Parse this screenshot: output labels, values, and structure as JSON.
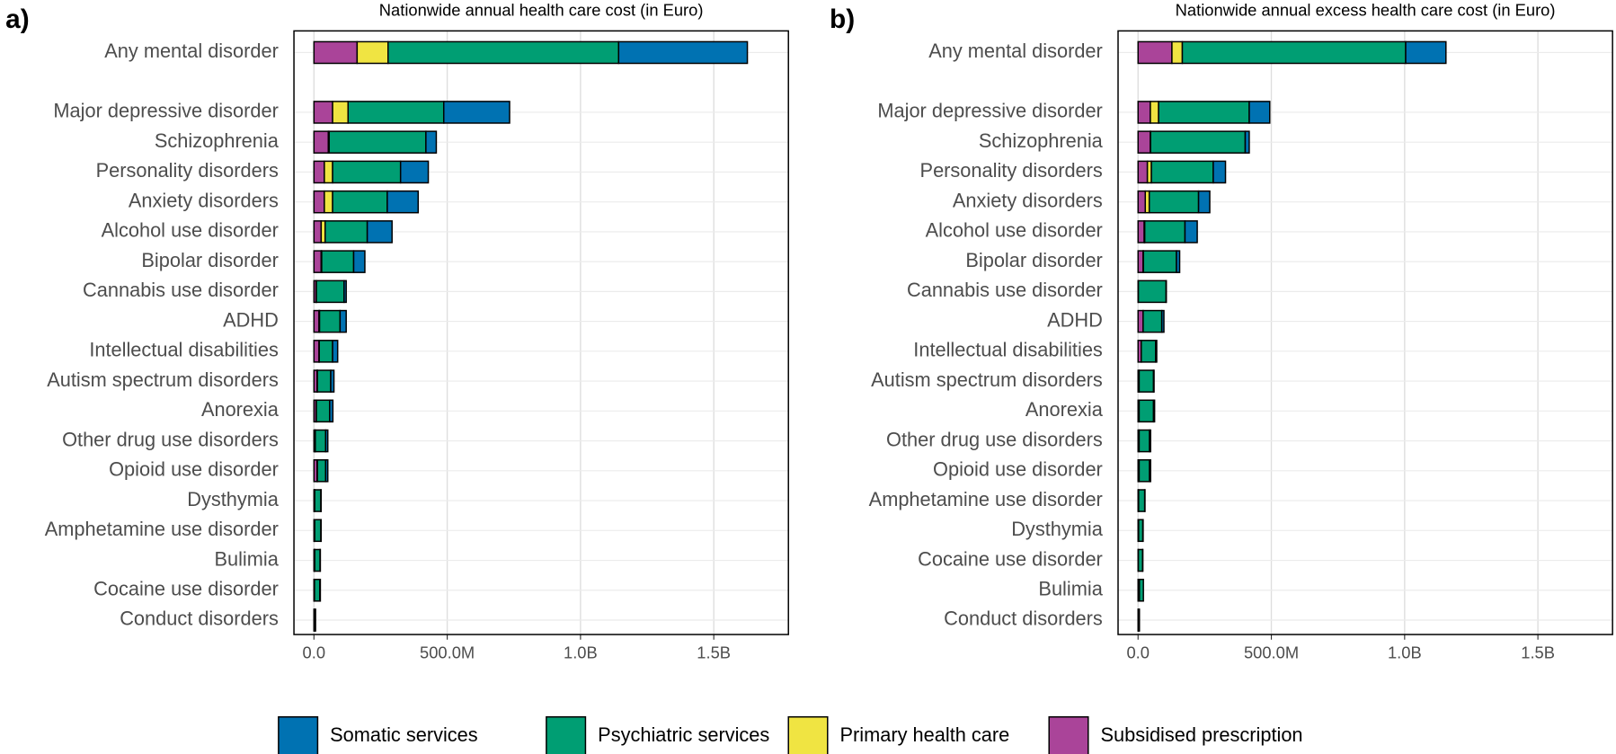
{
  "chart_data": [
    {
      "type": "bar",
      "orientation": "horizontal",
      "panel_label": "a)",
      "title": "Nationwide annual health care cost (in Euro)",
      "categories": [
        "Any mental disorder",
        "Major depressive disorder",
        "Schizophrenia",
        "Personality disorders",
        "Anxiety disorders",
        "Alcohol use disorder",
        "Bipolar disorder",
        "Cannabis use disorder",
        "ADHD",
        "Intellectual disabilities",
        "Autism spectrum disorders",
        "Anorexia",
        "Other drug use disorders",
        "Opioid use disorder",
        "Dysthymia",
        "Amphetamine use disorder",
        "Bulimia",
        "Cocaine use disorder",
        "Conduct disorders"
      ],
      "series": [
        {
          "name": "Subsidised prescription",
          "color": "#AA4499",
          "values": [
            162000000,
            70000000,
            54000000,
            39000000,
            39000000,
            27000000,
            27000000,
            8000000,
            19000000,
            19000000,
            12000000,
            8000000,
            4000000,
            12000000,
            2000000,
            2000000,
            2000000,
            1000000,
            1000000
          ]
        },
        {
          "name": "Primary health care",
          "color": "#F0E442",
          "values": [
            116000000,
            58000000,
            3000000,
            31000000,
            31000000,
            15000000,
            2000000,
            1000000,
            2000000,
            1000000,
            1000000,
            1000000,
            1000000,
            1000000,
            1000000,
            1000000,
            1000000,
            1000000,
            0
          ]
        },
        {
          "name": "Psychiatric services",
          "color": "#009E73",
          "values": [
            865000000,
            359000000,
            363000000,
            255000000,
            205000000,
            158000000,
            120000000,
            104000000,
            77000000,
            50000000,
            50000000,
            50000000,
            39000000,
            31000000,
            23000000,
            23000000,
            20000000,
            20000000,
            4000000
          ]
        },
        {
          "name": "Somatic services",
          "color": "#0072B2",
          "values": [
            483000000,
            247000000,
            39000000,
            104000000,
            116000000,
            93000000,
            42000000,
            8000000,
            23000000,
            19000000,
            12000000,
            12000000,
            8000000,
            8000000,
            1000000,
            1000000,
            1000000,
            2000000,
            1000000
          ]
        }
      ],
      "xlim": [
        -75000000,
        1780000000
      ],
      "xticks": [
        {
          "value": 0,
          "label": "0.0"
        },
        {
          "value": 500000000,
          "label": "500.0M"
        },
        {
          "value": 1000000000,
          "label": "1.0B"
        },
        {
          "value": 1500000000,
          "label": "1.5B"
        }
      ],
      "grid": true,
      "stacked": true
    },
    {
      "type": "bar",
      "orientation": "horizontal",
      "panel_label": "b)",
      "title": "Nationwide annual excess health care cost (in Euro)",
      "categories": [
        "Any mental disorder",
        "Major depressive disorder",
        "Schizophrenia",
        "Personality disorders",
        "Anxiety disorders",
        "Alcohol use disorder",
        "Bipolar disorder",
        "Cannabis use disorder",
        "ADHD",
        "Intellectual disabilities",
        "Autism spectrum disorders",
        "Anorexia",
        "Other drug use disorders",
        "Opioid use disorder",
        "Amphetamine use disorder",
        "Dysthymia",
        "Cocaine use disorder",
        "Bulimia",
        "Conduct disorders"
      ],
      "series": [
        {
          "name": "Subsidised prescription",
          "color": "#AA4499",
          "values": [
            127000000,
            46000000,
            46000000,
            35000000,
            27000000,
            23000000,
            19000000,
            1000000,
            19000000,
            12000000,
            4000000,
            4000000,
            4000000,
            4000000,
            2000000,
            2000000,
            1000000,
            5000000,
            1000000
          ]
        },
        {
          "name": "Primary health care",
          "color": "#F0E442",
          "values": [
            39000000,
            31000000,
            1000000,
            15000000,
            15000000,
            2000000,
            1000000,
            0,
            0,
            0,
            0,
            0,
            0,
            0,
            0,
            0,
            0,
            0,
            0
          ]
        },
        {
          "name": "Psychiatric services",
          "color": "#009E73",
          "values": [
            838000000,
            340000000,
            355000000,
            232000000,
            185000000,
            151000000,
            124000000,
            104000000,
            70000000,
            54000000,
            54000000,
            54000000,
            39000000,
            39000000,
            23000000,
            16000000,
            16000000,
            15000000,
            3000000
          ]
        },
        {
          "name": "Somatic services",
          "color": "#0072B2",
          "values": [
            151000000,
            77000000,
            15000000,
            46000000,
            42000000,
            46000000,
            12000000,
            1000000,
            8000000,
            4000000,
            2000000,
            4000000,
            4000000,
            4000000,
            1000000,
            1000000,
            1000000,
            0,
            1000000
          ]
        }
      ],
      "xlim": [
        -75000000,
        1780000000
      ],
      "xticks": [
        {
          "value": 0,
          "label": "0.0"
        },
        {
          "value": 500000000,
          "label": "500.0M"
        },
        {
          "value": 1000000000,
          "label": "1.0B"
        },
        {
          "value": 1500000000,
          "label": "1.5B"
        }
      ],
      "grid": true,
      "stacked": true
    }
  ]
}
